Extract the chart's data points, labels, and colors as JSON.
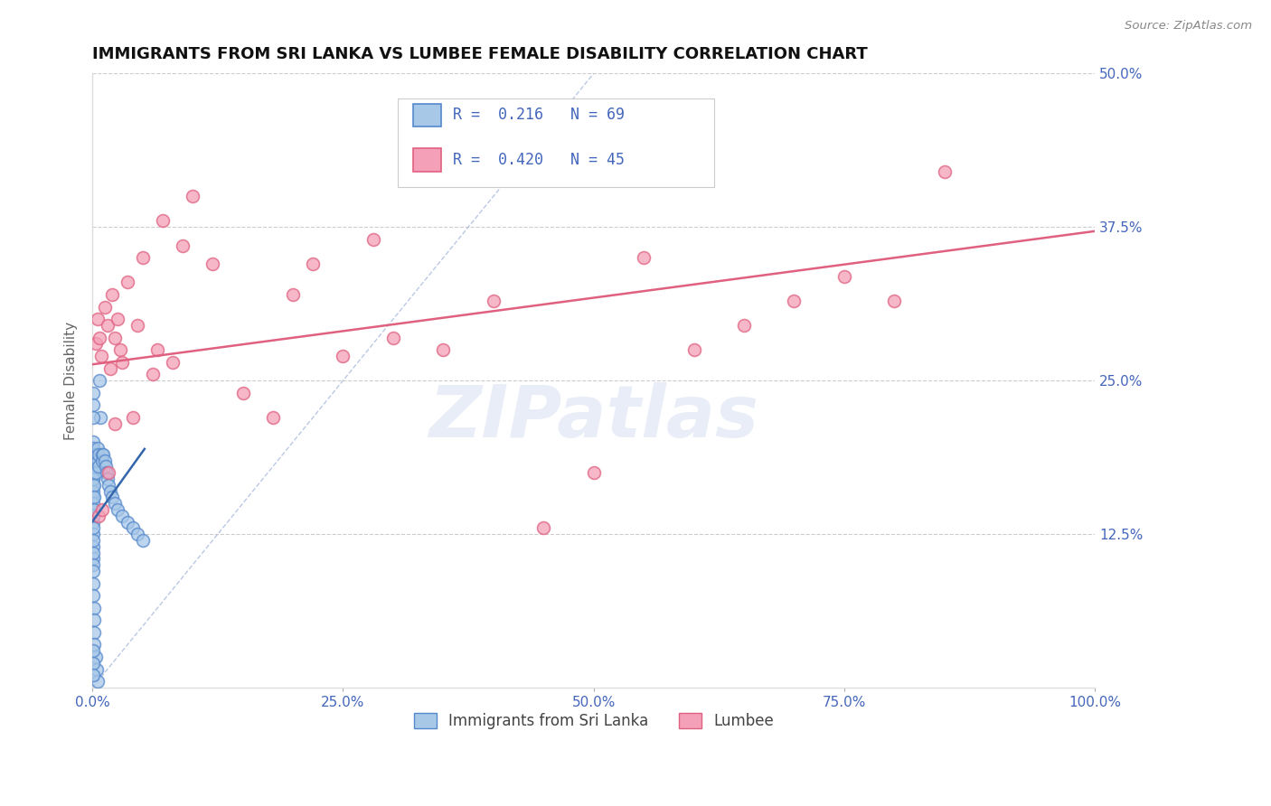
{
  "title": "IMMIGRANTS FROM SRI LANKA VS LUMBEE FEMALE DISABILITY CORRELATION CHART",
  "source_text": "Source: ZipAtlas.com",
  "ylabel": "Female Disability",
  "xlim": [
    0,
    1.0
  ],
  "ylim": [
    0,
    0.5
  ],
  "xticks": [
    0.0,
    0.25,
    0.5,
    0.75,
    1.0
  ],
  "xtick_labels": [
    "0.0%",
    "25.0%",
    "50.0%",
    "75.0%",
    "100.0%"
  ],
  "yticks": [
    0.0,
    0.125,
    0.25,
    0.375,
    0.5
  ],
  "ytick_labels": [
    "",
    "12.5%",
    "25.0%",
    "37.5%",
    "50.0%"
  ],
  "legend1_label": "Immigrants from Sri Lanka",
  "legend2_label": "Lumbee",
  "R1": 0.216,
  "N1": 69,
  "R2": 0.42,
  "N2": 45,
  "color1": "#a8c8e8",
  "color1_dark": "#5588cc",
  "color2": "#f4a0b8",
  "color2_dark": "#e06080",
  "trendline1_color": "#3366aa",
  "trendline2_color": "#e06080",
  "title_color": "#111111",
  "axis_tick_color": "#4466bb",
  "watermark": "ZIPatlas",
  "sri_lanka_x": [
    0.0005,
    0.0005,
    0.0005,
    0.0005,
    0.0005,
    0.0005,
    0.0005,
    0.0005,
    0.0005,
    0.0005,
    0.0008,
    0.0008,
    0.0008,
    0.0008,
    0.0008,
    0.0008,
    0.0008,
    0.0008,
    0.001,
    0.001,
    0.001,
    0.001,
    0.001,
    0.001,
    0.001,
    0.0015,
    0.0015,
    0.0015,
    0.0015,
    0.0015,
    0.002,
    0.002,
    0.002,
    0.002,
    0.003,
    0.003,
    0.003,
    0.004,
    0.004,
    0.005,
    0.005,
    0.005,
    0.006,
    0.006,
    0.007,
    0.008,
    0.01,
    0.01,
    0.011,
    0.012,
    0.013,
    0.014,
    0.015,
    0.016,
    0.018,
    0.02,
    0.022,
    0.025,
    0.03,
    0.035,
    0.04,
    0.045,
    0.05,
    0.0005,
    0.0005,
    0.0005,
    0.0005,
    0.0005,
    0.0005
  ],
  "sri_lanka_y": [
    0.19,
    0.185,
    0.175,
    0.165,
    0.155,
    0.145,
    0.135,
    0.125,
    0.115,
    0.105,
    0.17,
    0.16,
    0.15,
    0.14,
    0.13,
    0.12,
    0.11,
    0.1,
    0.2,
    0.195,
    0.18,
    0.17,
    0.095,
    0.085,
    0.075,
    0.165,
    0.155,
    0.145,
    0.065,
    0.055,
    0.19,
    0.185,
    0.045,
    0.035,
    0.185,
    0.175,
    0.025,
    0.19,
    0.015,
    0.195,
    0.185,
    0.005,
    0.19,
    0.18,
    0.25,
    0.22,
    0.19,
    0.185,
    0.19,
    0.185,
    0.18,
    0.175,
    0.17,
    0.165,
    0.16,
    0.155,
    0.15,
    0.145,
    0.14,
    0.135,
    0.13,
    0.125,
    0.12,
    0.24,
    0.23,
    0.22,
    0.03,
    0.02,
    0.01
  ],
  "lumbee_x": [
    0.003,
    0.005,
    0.007,
    0.009,
    0.012,
    0.015,
    0.018,
    0.02,
    0.022,
    0.025,
    0.028,
    0.03,
    0.035,
    0.04,
    0.045,
    0.05,
    0.06,
    0.065,
    0.07,
    0.08,
    0.09,
    0.1,
    0.12,
    0.15,
    0.18,
    0.2,
    0.22,
    0.25,
    0.28,
    0.3,
    0.35,
    0.4,
    0.45,
    0.5,
    0.55,
    0.6,
    0.65,
    0.7,
    0.75,
    0.8,
    0.006,
    0.01,
    0.016,
    0.022,
    0.85
  ],
  "lumbee_y": [
    0.28,
    0.3,
    0.285,
    0.27,
    0.31,
    0.295,
    0.26,
    0.32,
    0.285,
    0.3,
    0.275,
    0.265,
    0.33,
    0.22,
    0.295,
    0.35,
    0.255,
    0.275,
    0.38,
    0.265,
    0.36,
    0.4,
    0.345,
    0.24,
    0.22,
    0.32,
    0.345,
    0.27,
    0.365,
    0.285,
    0.275,
    0.315,
    0.13,
    0.175,
    0.35,
    0.275,
    0.295,
    0.315,
    0.335,
    0.315,
    0.14,
    0.145,
    0.175,
    0.215,
    0.42
  ]
}
